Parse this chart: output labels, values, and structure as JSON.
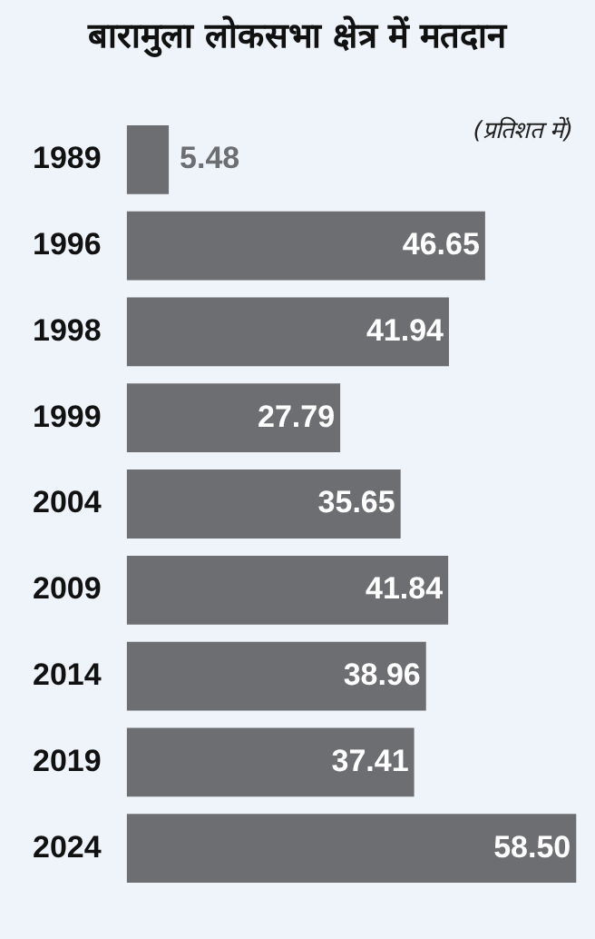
{
  "chart_data": {
    "type": "bar",
    "orientation": "horizontal",
    "title": "बारामुला लोकसभा क्षेत्र में मतदान",
    "annotations": [
      "(प्रतिशत में)"
    ],
    "categories": [
      "1989",
      "1996",
      "1998",
      "1999",
      "2004",
      "2009",
      "2014",
      "2019",
      "2024"
    ],
    "values": [
      5.48,
      46.65,
      41.94,
      27.79,
      35.65,
      41.84,
      38.96,
      37.41,
      58.5
    ],
    "value_labels": [
      "5.48",
      "46.65",
      "41.94",
      "27.79",
      "35.65",
      "41.84",
      "38.96",
      "37.41",
      "58.50"
    ],
    "color": "#6d6e71",
    "grid": false,
    "legend": false
  }
}
